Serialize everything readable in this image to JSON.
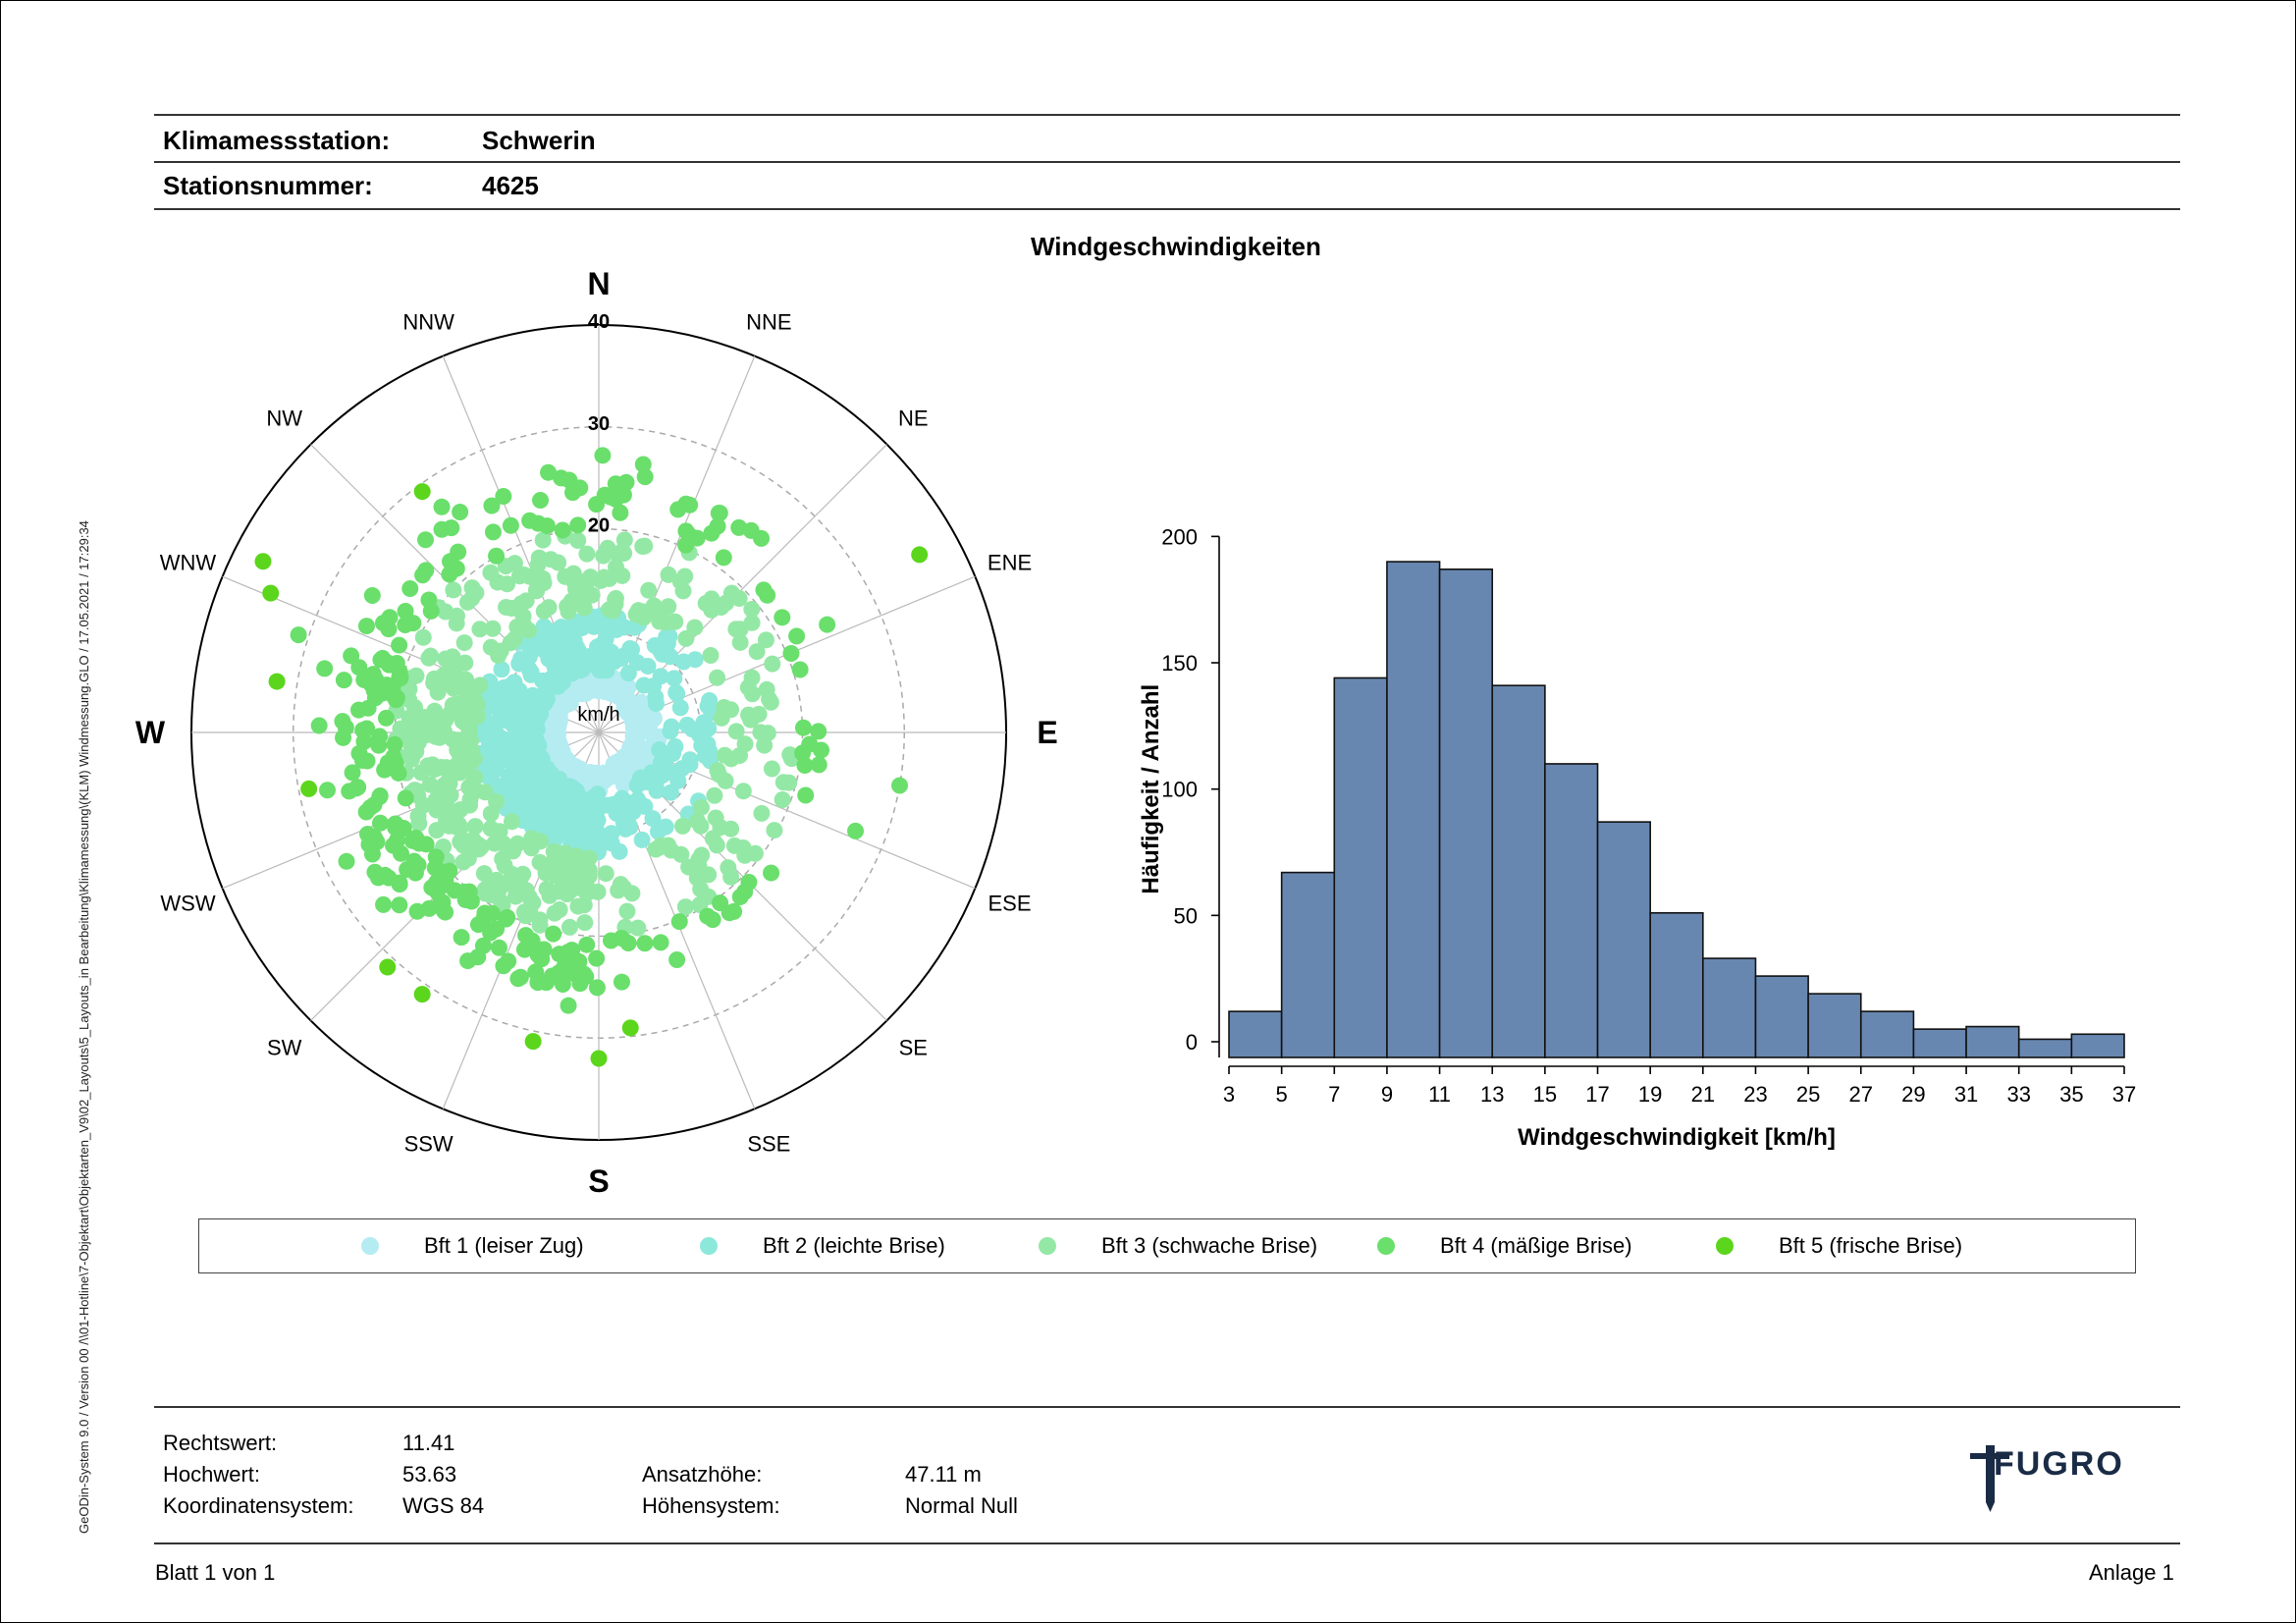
{
  "header": {
    "station_label": "Klimamessstation:",
    "station_value": "Schwerin",
    "number_label": "Stationsnummer:",
    "number_value": "4625"
  },
  "side_text": "GeODin-System 9.0 / Version 00 /\\\\01-Hotline\\7-Objektart\\Objektarten_V9\\02_Layouts\\5_Layouts_in Bearbeitung\\Klimamessung\\(KLM) Windmessung.GLO / 17.05.2021 / 17:29:34",
  "chart_title": "Windgeschwindigkeiten",
  "chart_data": [
    {
      "type": "scatter",
      "subtype": "polar",
      "radial_unit": "km/h",
      "radial_ticks": [
        "10",
        "20",
        "30",
        "40"
      ],
      "radial_max": 40,
      "directions": [
        "N",
        "NNE",
        "NE",
        "ENE",
        "E",
        "ESE",
        "SE",
        "SSE",
        "S",
        "SSW",
        "SW",
        "WSW",
        "W",
        "WNW",
        "NW",
        "NNW"
      ],
      "series": [
        {
          "name": "Bft 1 (leiser Zug)",
          "color": "#b4ecf2"
        },
        {
          "name": "Bft 2 (leichte Brise)",
          "color": "#8ce8da"
        },
        {
          "name": "Bft 3 (schwache Brise)",
          "color": "#94e8a6"
        },
        {
          "name": "Bft 4 (mäßige Brise)",
          "color": "#6adf6c"
        },
        {
          "name": "Bft 5 (frische Brise)",
          "color": "#5cd61c"
        }
      ],
      "highlighted_points": [
        {
          "dir_deg": 349,
          "speed": 26,
          "class": 4
        },
        {
          "dir_deg": 338,
          "speed": 25,
          "class": 4
        },
        {
          "dir_deg": 61,
          "speed": 36,
          "class": 5
        },
        {
          "dir_deg": 297,
          "speed": 37,
          "class": 5
        },
        {
          "dir_deg": 293,
          "speed": 35,
          "class": 5
        },
        {
          "dir_deg": 288,
          "speed": 31,
          "class": 4
        },
        {
          "dir_deg": 279,
          "speed": 32,
          "class": 5
        },
        {
          "dir_deg": 259,
          "speed": 29,
          "class": 5
        },
        {
          "dir_deg": 222,
          "speed": 31,
          "class": 5
        },
        {
          "dir_deg": 214,
          "speed": 31,
          "class": 5
        },
        {
          "dir_deg": 192,
          "speed": 31,
          "class": 5
        },
        {
          "dir_deg": 180,
          "speed": 32,
          "class": 5
        },
        {
          "dir_deg": 100,
          "speed": 30,
          "class": 4
        },
        {
          "dir_deg": 111,
          "speed": 27,
          "class": 4
        }
      ]
    },
    {
      "type": "bar",
      "subtype": "histogram",
      "bin_edges": [
        3,
        5,
        7,
        9,
        11,
        13,
        15,
        17,
        19,
        21,
        23,
        25,
        27,
        29,
        31,
        33,
        35,
        37
      ],
      "values": [
        12,
        67,
        144,
        190,
        187,
        141,
        110,
        87,
        51,
        33,
        26,
        19,
        12,
        5,
        6,
        1,
        3
      ],
      "color": "#6887b0",
      "xlabel": "Windgeschwindigkeit [km/h]",
      "ylabel": "Häufigkeit / Anzahl",
      "ylim": [
        0,
        200
      ],
      "yticks": [
        "0",
        "50",
        "100",
        "150",
        "200"
      ],
      "xticks": [
        "3",
        "5",
        "7",
        "9",
        "11",
        "13",
        "15",
        "17",
        "19",
        "21",
        "23",
        "25",
        "27",
        "29",
        "31",
        "33",
        "35",
        "37"
      ]
    }
  ],
  "legend": [
    {
      "label": "Bft 1 (leiser Zug)",
      "color": "#b4ecf2"
    },
    {
      "label": "Bft 2 (leichte Brise)",
      "color": "#8ce8da"
    },
    {
      "label": "Bft 3 (schwache Brise)",
      "color": "#94e8a6"
    },
    {
      "label": "Bft 4 (mäßige Brise)",
      "color": "#6adf6c"
    },
    {
      "label": "Bft 5 (frische Brise)",
      "color": "#5cd61c"
    }
  ],
  "footer": {
    "rechtswert_label": "Rechtswert:",
    "rechtswert_value": "11.41",
    "hochwert_label": "Hochwert:",
    "hochwert_value": "53.63",
    "koord_label": "Koordinatensystem:",
    "koord_value": "WGS 84",
    "ansatz_label": "Ansatzhöhe:",
    "ansatz_value": "47.11 m",
    "hoehen_label": "Höhensystem:",
    "hoehen_value": "Normal Null",
    "page_label": "Blatt 1 von 1",
    "anlage_label": "Anlage 1"
  },
  "logo_text": "FUGRO"
}
